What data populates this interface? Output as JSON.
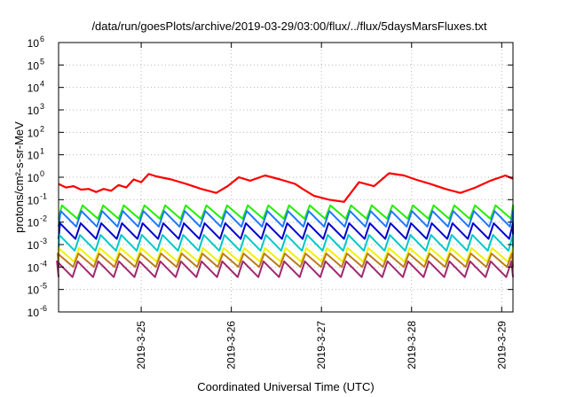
{
  "chart_data": {
    "type": "line",
    "title": "/data/run/goesPlots/archive/2019-03-29/03:00/flux/../flux/5daysMarsFluxes.txt",
    "xlabel": "Coordinated Universal Time (UTC)",
    "ylabel": "protons/cm²-s-sr-MeV",
    "yscale": "log",
    "ylim": [
      1e-06,
      1000000.0
    ],
    "xlim": [
      "2019-03-24T02:00",
      "2019-03-29T03:00"
    ],
    "grid": true,
    "x_ticks": [
      "2019-3-25",
      "2019-3-26",
      "2019-3-27",
      "2019-3-28",
      "2019-3-29"
    ],
    "y_ticks": [
      {
        "base": "10",
        "exp": "-6"
      },
      {
        "base": "10",
        "exp": "-5"
      },
      {
        "base": "10",
        "exp": "-4"
      },
      {
        "base": "10",
        "exp": "-3"
      },
      {
        "base": "10",
        "exp": "-2"
      },
      {
        "base": "10",
        "exp": "-1"
      },
      {
        "base": "10",
        "exp": "0"
      },
      {
        "base": "10",
        "exp": "1"
      },
      {
        "base": "10",
        "exp": "2"
      },
      {
        "base": "10",
        "exp": "3"
      },
      {
        "base": "10",
        "exp": "4"
      },
      {
        "base": "10",
        "exp": "5"
      },
      {
        "base": "10",
        "exp": "6"
      }
    ],
    "series": [
      {
        "color": "#ff0000",
        "x": [
          "2019-03-24T02:00",
          "2019-03-24T04:00",
          "2019-03-24T06:00",
          "2019-03-24T08:00",
          "2019-03-24T10:00",
          "2019-03-24T12:00",
          "2019-03-24T14:00",
          "2019-03-24T16:00",
          "2019-03-24T18:00",
          "2019-03-24T20:00",
          "2019-03-24T22:00",
          "2019-03-25T00:00",
          "2019-03-25T02:00",
          "2019-03-25T04:00",
          "2019-03-25T08:00",
          "2019-03-25T12:00",
          "2019-03-25T16:00",
          "2019-03-25T20:00",
          "2019-03-25T23:00",
          "2019-03-26T02:00",
          "2019-03-26T05:00",
          "2019-03-26T09:00",
          "2019-03-26T13:00",
          "2019-03-26T17:00",
          "2019-03-26T19:00",
          "2019-03-26T22:00",
          "2019-03-27T02:00",
          "2019-03-27T06:00",
          "2019-03-27T10:00",
          "2019-03-27T14:00",
          "2019-03-27T18:00",
          "2019-03-27T22:00",
          "2019-03-28T01:00",
          "2019-03-28T05:00",
          "2019-03-28T09:00",
          "2019-03-28T13:00",
          "2019-03-28T17:00",
          "2019-03-28T21:00",
          "2019-03-29T01:00",
          "2019-03-29T03:00"
        ],
        "y": [
          0.5,
          0.35,
          0.4,
          0.28,
          0.3,
          0.22,
          0.3,
          0.25,
          0.45,
          0.35,
          0.8,
          0.6,
          1.4,
          1.1,
          0.8,
          0.5,
          0.3,
          0.2,
          0.4,
          1.0,
          0.7,
          1.2,
          0.8,
          0.5,
          0.3,
          0.15,
          0.1,
          0.08,
          0.6,
          0.4,
          1.5,
          1.2,
          0.8,
          0.5,
          0.3,
          0.2,
          0.35,
          0.7,
          1.2,
          0.85
        ]
      },
      {
        "color": "#22ee00",
        "base": 0.028,
        "amp": 0.6,
        "period_h": 5.5,
        "phase_h": 0.5
      },
      {
        "color": "#1e78ff",
        "base": 0.014,
        "amp": 0.7,
        "period_h": 5.5,
        "phase_h": 0.8
      },
      {
        "color": "#0000cc",
        "base": 0.004,
        "amp": 0.7,
        "period_h": 5.5,
        "phase_h": 1.0
      },
      {
        "color": "#00c8c8",
        "base": 0.0012,
        "amp": 0.7,
        "period_h": 5.5,
        "phase_h": 1.2
      },
      {
        "color": "#f0f000",
        "base": 0.00035,
        "amp": 0.6,
        "period_h": 5.5,
        "phase_h": 1.4
      },
      {
        "color": "#bb7a1e",
        "base": 0.0002,
        "amp": 0.6,
        "period_h": 5.5,
        "phase_h": 1.6
      },
      {
        "color": "#a0286e",
        "base": 8e-05,
        "amp": 0.7,
        "period_h": 5.5,
        "phase_h": 1.8
      }
    ]
  }
}
